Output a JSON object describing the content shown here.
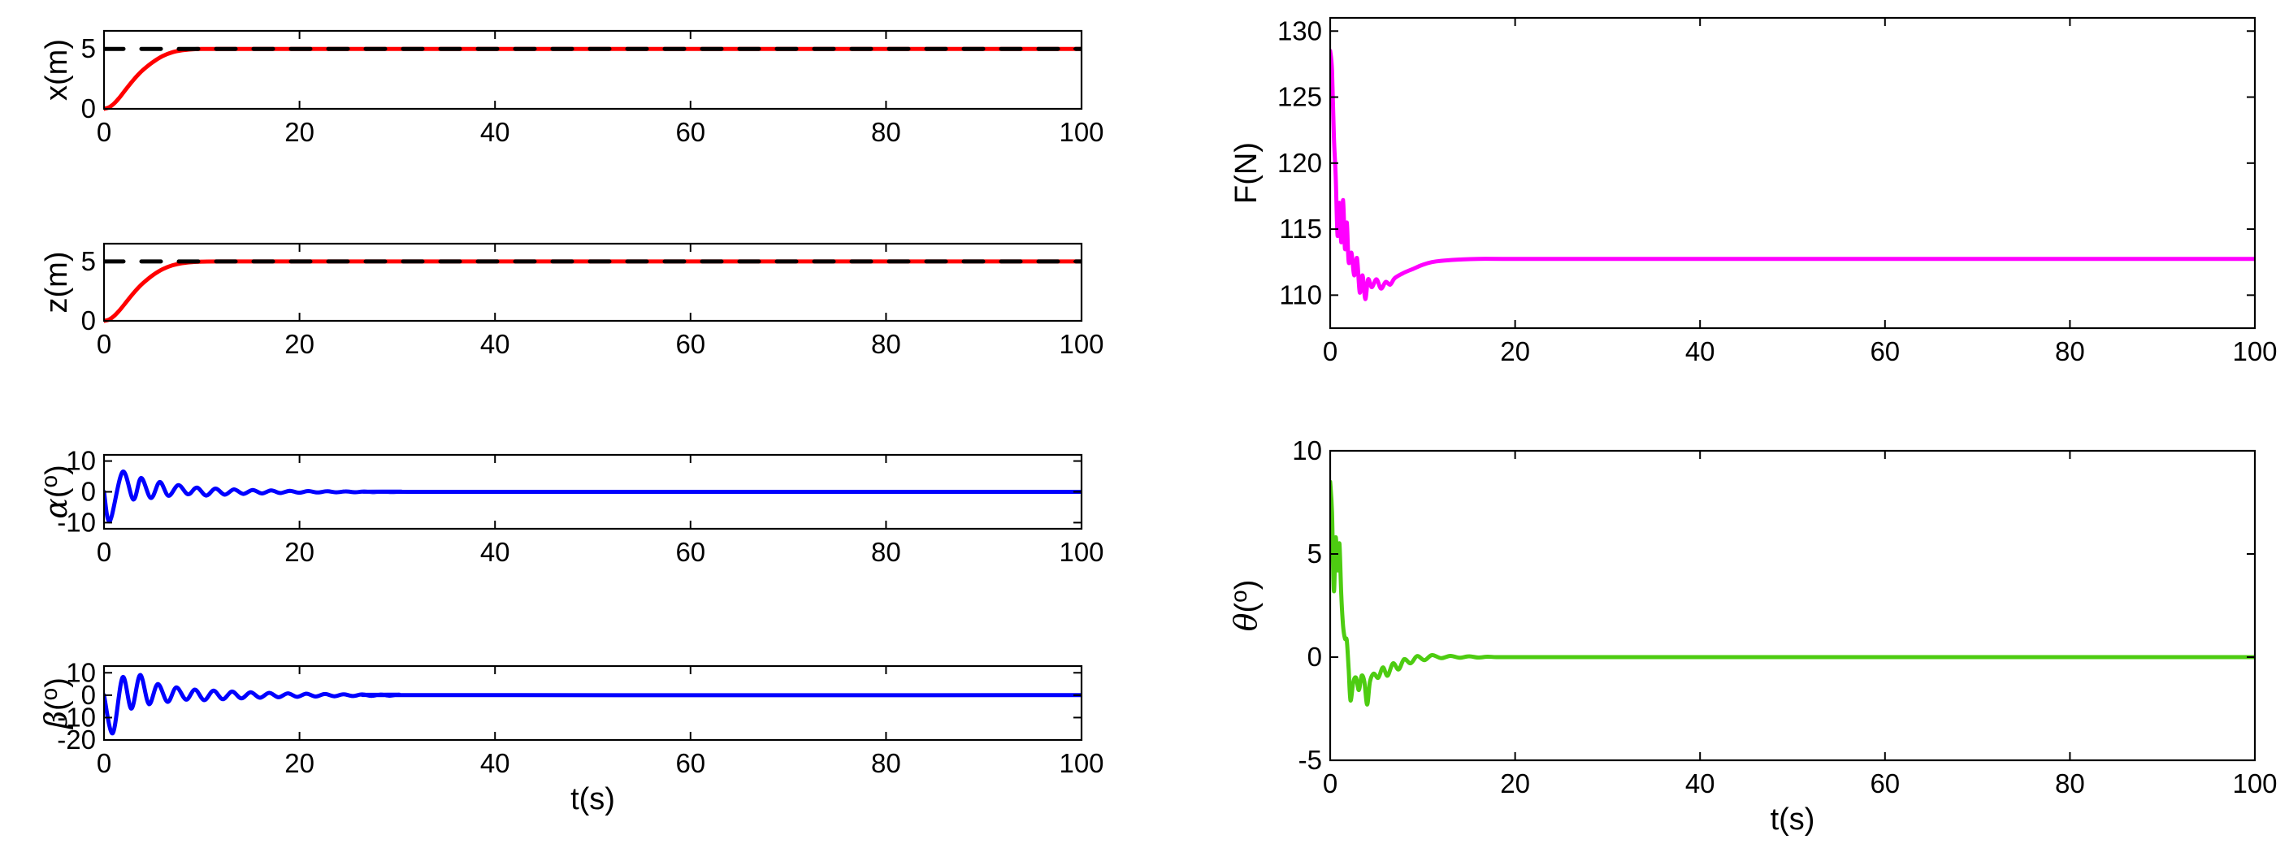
{
  "chart_data": [
    {
      "id": "x",
      "type": "line",
      "ylabel": "x(m)",
      "xlabel": "",
      "xlim": [
        0,
        100
      ],
      "ylim": [
        0,
        6.5
      ],
      "xticks": [
        0,
        20,
        40,
        60,
        80,
        100
      ],
      "yticks": [
        0,
        5
      ],
      "series": [
        {
          "name": "x",
          "color": "#ff0000",
          "style": "solid",
          "width": 5,
          "x": [
            0,
            0.5,
            1,
            1.5,
            2,
            2.5,
            3,
            3.5,
            4,
            5,
            6,
            7,
            8,
            9,
            10,
            12,
            15,
            20,
            40,
            60,
            80,
            100
          ],
          "y": [
            0,
            0.12,
            0.42,
            0.85,
            1.38,
            1.9,
            2.4,
            2.85,
            3.25,
            3.9,
            4.4,
            4.72,
            4.88,
            4.96,
            4.99,
            5.0,
            5.0,
            5.0,
            5.0,
            5.0,
            5.0,
            5.0
          ]
        },
        {
          "name": "x_ref",
          "color": "#000000",
          "style": "dashed",
          "width": 5,
          "x": [
            0,
            100
          ],
          "y": [
            5,
            5
          ]
        }
      ]
    },
    {
      "id": "z",
      "type": "line",
      "ylabel": "z(m)",
      "xlabel": "",
      "xlim": [
        0,
        100
      ],
      "ylim": [
        0,
        6.5
      ],
      "xticks": [
        0,
        20,
        40,
        60,
        80,
        100
      ],
      "yticks": [
        0,
        5
      ],
      "series": [
        {
          "name": "z",
          "color": "#ff0000",
          "style": "solid",
          "width": 5,
          "x": [
            0,
            0.5,
            1,
            1.5,
            2,
            2.5,
            3,
            3.5,
            4,
            5,
            6,
            7,
            8,
            9,
            10,
            12,
            15,
            20,
            40,
            60,
            80,
            100
          ],
          "y": [
            0,
            0.1,
            0.38,
            0.8,
            1.3,
            1.82,
            2.32,
            2.78,
            3.18,
            3.85,
            4.35,
            4.68,
            4.86,
            4.95,
            4.99,
            5.0,
            5.0,
            5.0,
            5.0,
            5.0,
            5.0,
            5.0
          ]
        },
        {
          "name": "z_ref",
          "color": "#000000",
          "style": "dashed",
          "width": 5,
          "x": [
            0,
            100
          ],
          "y": [
            5,
            5
          ]
        }
      ]
    },
    {
      "id": "alpha",
      "type": "line",
      "ylabel": "α(°)",
      "ylabel_main": "α",
      "ylabel_sup": "o",
      "xlabel": "",
      "xlim": [
        0,
        100
      ],
      "ylim": [
        -12,
        12
      ],
      "xticks": [
        0,
        20,
        40,
        60,
        80,
        100
      ],
      "yticks": [
        -10,
        0,
        10
      ],
      "series": [
        {
          "name": "alpha",
          "color": "#0000ff",
          "style": "solid",
          "width": 5,
          "osc": {
            "period": 1.9,
            "phase": 0,
            "decay": 0.38,
            "amp_fn": "alpha",
            "peaks": [
              [
                0.6,
                -9.5
              ],
              [
                1.9,
                6.5
              ],
              [
                3.0,
                -2.5
              ],
              [
                3.8,
                4.5
              ],
              [
                4.8,
                -2
              ],
              [
                5.7,
                3.2
              ],
              [
                6.6,
                -1.3
              ],
              [
                7.6,
                2.2
              ],
              [
                8.6,
                -0.8
              ],
              [
                9.5,
                1.4
              ]
            ]
          }
        }
      ]
    },
    {
      "id": "beta",
      "type": "line",
      "ylabel": "β(°)",
      "ylabel_main": "β",
      "ylabel_sup": "o",
      "xlabel": "t(s)",
      "xlim": [
        0,
        100
      ],
      "ylim": [
        -20,
        13
      ],
      "xticks": [
        0,
        20,
        40,
        60,
        80,
        100
      ],
      "yticks": [
        -20,
        -10,
        0,
        10
      ],
      "series": [
        {
          "name": "beta",
          "color": "#0000ff",
          "style": "solid",
          "width": 5,
          "osc": {
            "period": 1.9,
            "phase": 0,
            "decay": 0.3,
            "amp_fn": "beta",
            "peaks": [
              [
                0.9,
                -17
              ],
              [
                1.9,
                8
              ],
              [
                2.8,
                -6
              ],
              [
                3.7,
                9
              ],
              [
                4.6,
                -4
              ],
              [
                5.5,
                5
              ],
              [
                6.5,
                -3
              ],
              [
                7.4,
                3.5
              ],
              [
                8.4,
                -2
              ],
              [
                9.3,
                2.5
              ]
            ]
          }
        }
      ]
    },
    {
      "id": "F",
      "type": "line",
      "ylabel": "F(N)",
      "xlabel": "",
      "xlim": [
        0,
        100
      ],
      "ylim": [
        107.5,
        131
      ],
      "xticks": [
        0,
        20,
        40,
        60,
        80,
        100
      ],
      "yticks": [
        110,
        115,
        120,
        125,
        130
      ],
      "series": [
        {
          "name": "F",
          "color": "#ff00ff",
          "style": "solid",
          "width": 5,
          "x": [
            0,
            0.2,
            0.4,
            0.6,
            0.8,
            1.0,
            1.2,
            1.4,
            1.6,
            1.8,
            2.0,
            2.3,
            2.6,
            2.9,
            3.2,
            3.5,
            3.8,
            4.1,
            4.5,
            5.0,
            5.5,
            6.0,
            6.5,
            7.0,
            8.0,
            9.0,
            10,
            11,
            12,
            14,
            16,
            20,
            40,
            60,
            80,
            100
          ],
          "y": [
            128.5,
            127,
            122,
            119,
            114.5,
            117,
            114,
            117.2,
            113.5,
            115.5,
            112.5,
            113.2,
            111.5,
            112.8,
            110.2,
            111.5,
            109.7,
            111.2,
            110.6,
            111.2,
            110.5,
            111.0,
            110.8,
            111.3,
            111.7,
            112.0,
            112.3,
            112.5,
            112.6,
            112.7,
            112.75,
            112.75,
            112.75,
            112.75,
            112.75,
            112.75
          ]
        }
      ]
    },
    {
      "id": "theta",
      "type": "line",
      "ylabel": "θ(°)",
      "ylabel_main": "θ",
      "ylabel_sup": "o",
      "xlabel": "t(s)",
      "xlim": [
        0,
        100
      ],
      "ylim": [
        -5,
        10
      ],
      "xticks": [
        0,
        20,
        40,
        60,
        80,
        100
      ],
      "yticks": [
        -5,
        0,
        5,
        10
      ],
      "series": [
        {
          "name": "theta",
          "color": "#4dcc11",
          "style": "solid",
          "width": 5,
          "x": [
            0,
            0.2,
            0.4,
            0.6,
            0.8,
            1.0,
            1.2,
            1.4,
            1.6,
            1.8,
            2.0,
            2.2,
            2.5,
            2.8,
            3.1,
            3.4,
            3.7,
            4.0,
            4.3,
            4.7,
            5.2,
            5.7,
            6.2,
            6.8,
            7.4,
            8.0,
            8.7,
            9.4,
            10.2,
            11.0,
            12,
            13,
            14,
            15,
            16,
            17,
            18,
            20,
            25,
            30,
            40,
            60,
            80,
            100
          ],
          "y": [
            8.5,
            7.0,
            3.2,
            5.8,
            4.2,
            5.5,
            3.0,
            1.5,
            0.9,
            0.8,
            -0.6,
            -2.1,
            -1.2,
            -1.0,
            -1.6,
            -0.9,
            -1.2,
            -2.3,
            -1.2,
            -0.8,
            -1.0,
            -0.5,
            -0.9,
            -0.3,
            -0.6,
            -0.1,
            -0.3,
            0.05,
            -0.15,
            0.1,
            -0.05,
            0.06,
            -0.03,
            0.04,
            -0.02,
            0.02,
            0,
            0,
            0,
            0,
            0,
            0,
            0,
            0
          ]
        }
      ]
    }
  ]
}
